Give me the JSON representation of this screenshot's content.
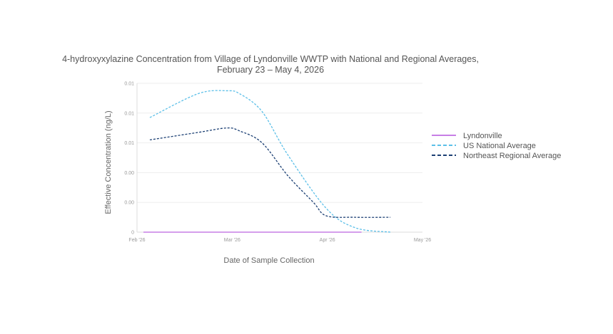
{
  "chart_data": {
    "type": "line",
    "title": "4-hydroxyxylazine Concentration from Village of Lyndonville WWTP with National and Regional Averages,",
    "subtitle": "February 23 – May 4, 2026",
    "xlabel": "Date of Sample Collection",
    "ylabel": "Effective Concentration (ng/L)",
    "x_ticks": [
      "Feb '26",
      "Mar '26",
      "Apr '26",
      "May '26"
    ],
    "y_ticks": [
      "0",
      "0.00",
      "0.00",
      "0.01",
      "0.01",
      "0.01"
    ],
    "xlim": [
      "2026-02-01",
      "2026-05-01"
    ],
    "ylim": [
      0,
      0.01
    ],
    "grid": true,
    "legend_position": "right",
    "series": [
      {
        "name": "Lyndonville",
        "color": "#c77ee6",
        "dash": "solid",
        "x": [
          "2026-02-03",
          "2026-03-05",
          "2026-04-12"
        ],
        "y": [
          0,
          0,
          0
        ]
      },
      {
        "name": "US National Average",
        "color": "#5bbfe8",
        "dash": "dashed",
        "x": [
          "2026-02-05",
          "2026-02-20",
          "2026-03-01",
          "2026-03-05",
          "2026-03-12",
          "2026-03-20",
          "2026-04-01",
          "2026-04-10",
          "2026-04-21"
        ],
        "y": [
          0.0077,
          0.0093,
          0.0095,
          0.0093,
          0.0081,
          0.0052,
          0.0016,
          0.0003,
          0.0
        ]
      },
      {
        "name": "Northeast Regional Average",
        "color": "#1b3f73",
        "dash": "dashed",
        "x": [
          "2026-02-05",
          "2026-02-20",
          "2026-03-01",
          "2026-03-05",
          "2026-03-12",
          "2026-03-20",
          "2026-03-28",
          "2026-04-01",
          "2026-04-10",
          "2026-04-21"
        ],
        "y": [
          0.0062,
          0.0067,
          0.007,
          0.0068,
          0.006,
          0.0038,
          0.002,
          0.0011,
          0.001,
          0.001
        ]
      }
    ]
  },
  "colors": {
    "grid": "#eeeeee",
    "axis": "#dddddd"
  }
}
